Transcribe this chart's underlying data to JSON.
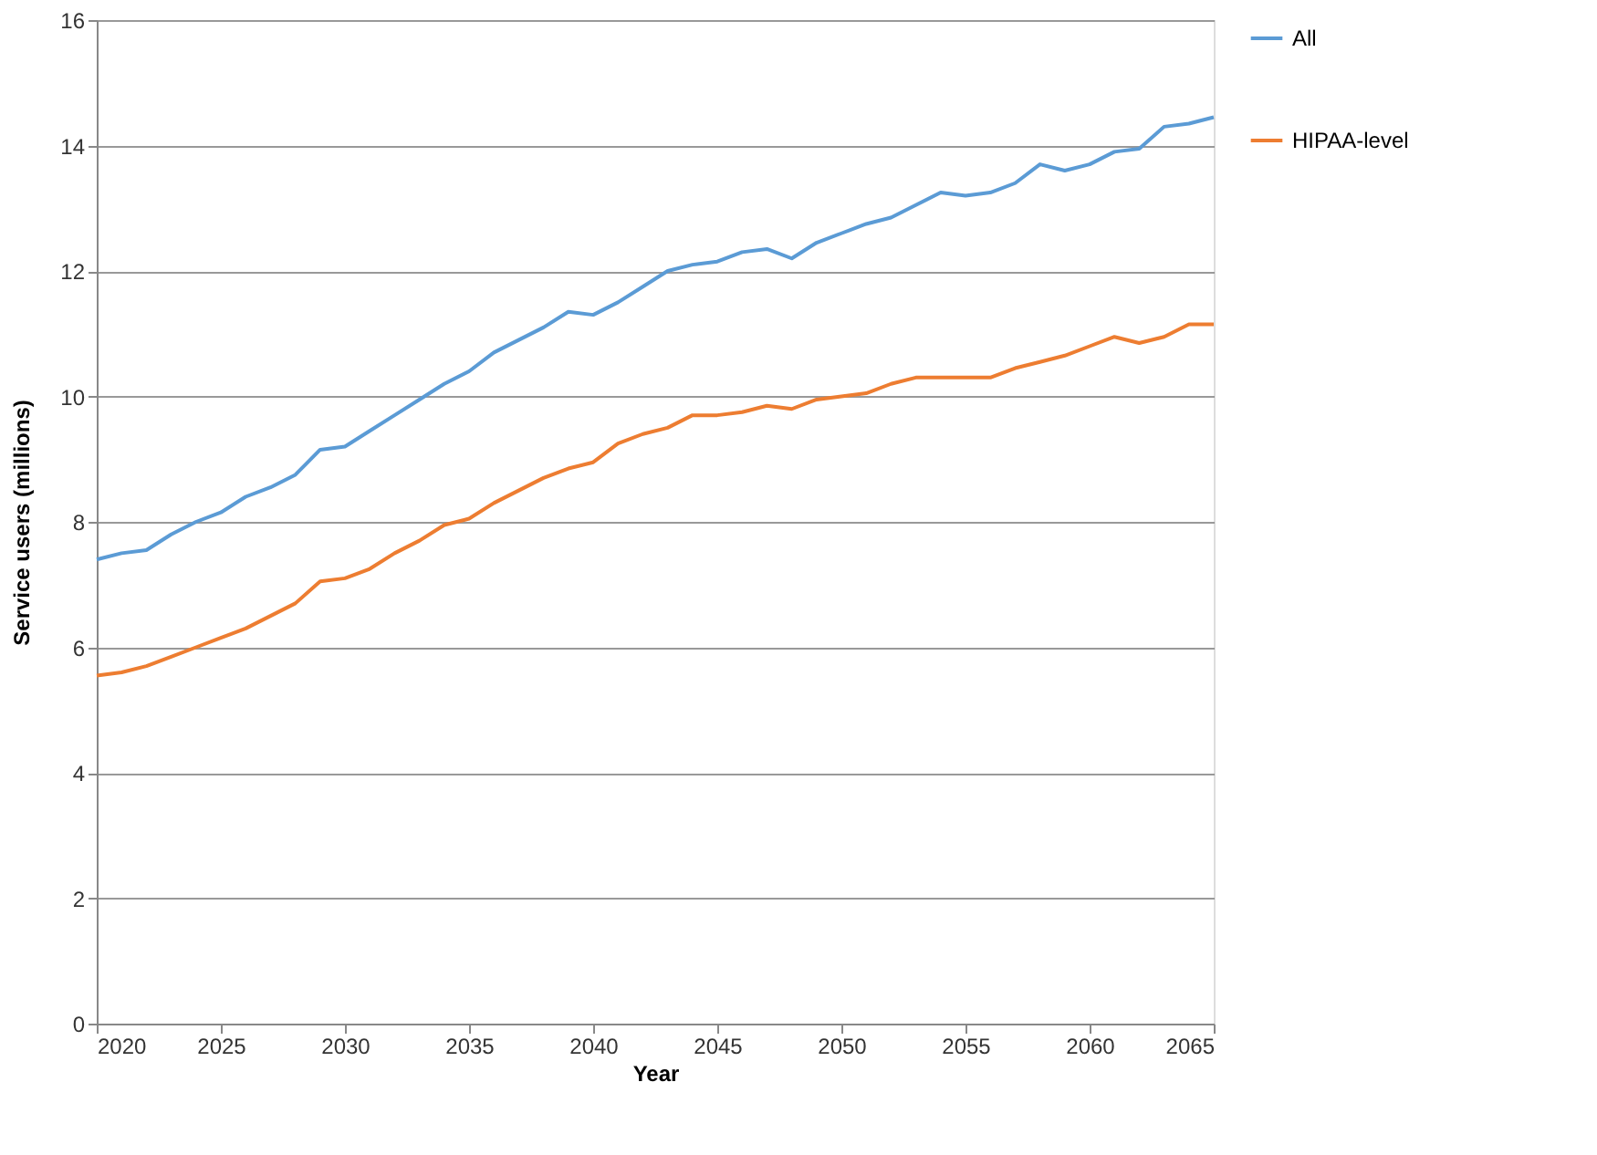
{
  "chart_data": {
    "type": "line",
    "xlabel": "Year",
    "ylabel": "Service users (millions)",
    "x": [
      2020,
      2021,
      2022,
      2023,
      2024,
      2025,
      2026,
      2027,
      2028,
      2029,
      2030,
      2031,
      2032,
      2033,
      2034,
      2035,
      2036,
      2037,
      2038,
      2039,
      2040,
      2041,
      2042,
      2043,
      2044,
      2045,
      2046,
      2047,
      2048,
      2049,
      2050,
      2051,
      2052,
      2053,
      2054,
      2055,
      2056,
      2057,
      2058,
      2059,
      2060,
      2061,
      2062,
      2063,
      2064,
      2065
    ],
    "series": [
      {
        "name": "All",
        "color": "#5b9bd5",
        "values": [
          7.4,
          7.5,
          7.55,
          7.8,
          8.0,
          8.15,
          8.4,
          8.55,
          8.75,
          9.15,
          9.2,
          9.45,
          9.7,
          9.95,
          10.2,
          10.4,
          10.7,
          10.9,
          11.1,
          11.35,
          11.3,
          11.5,
          11.75,
          12.0,
          12.1,
          12.15,
          12.3,
          12.35,
          12.2,
          12.45,
          12.6,
          12.75,
          12.85,
          13.05,
          13.25,
          13.2,
          13.25,
          13.4,
          13.7,
          13.6,
          13.7,
          13.9,
          13.95,
          14.3,
          14.35,
          14.45
        ]
      },
      {
        "name": "HIPAA-level",
        "color": "#ed7d31",
        "values": [
          5.55,
          5.6,
          5.7,
          5.85,
          6.0,
          6.15,
          6.3,
          6.5,
          6.7,
          7.05,
          7.1,
          7.25,
          7.5,
          7.7,
          7.95,
          8.05,
          8.3,
          8.5,
          8.7,
          8.85,
          8.95,
          9.25,
          9.4,
          9.5,
          9.7,
          9.7,
          9.75,
          9.85,
          9.8,
          9.95,
          10.0,
          10.05,
          10.2,
          10.3,
          10.3,
          10.3,
          10.3,
          10.45,
          10.55,
          10.65,
          10.8,
          10.95,
          10.85,
          10.95,
          11.15,
          11.15
        ]
      }
    ],
    "xlim": [
      2020,
      2065
    ],
    "xticks": [
      2020,
      2025,
      2030,
      2035,
      2040,
      2045,
      2050,
      2055,
      2060,
      2065
    ],
    "ylim": [
      0,
      16
    ],
    "yticks": [
      0,
      2,
      4,
      6,
      8,
      10,
      12,
      14,
      16
    ],
    "grid": "y",
    "legend": "right",
    "marker": "none",
    "line_style": "solid"
  }
}
